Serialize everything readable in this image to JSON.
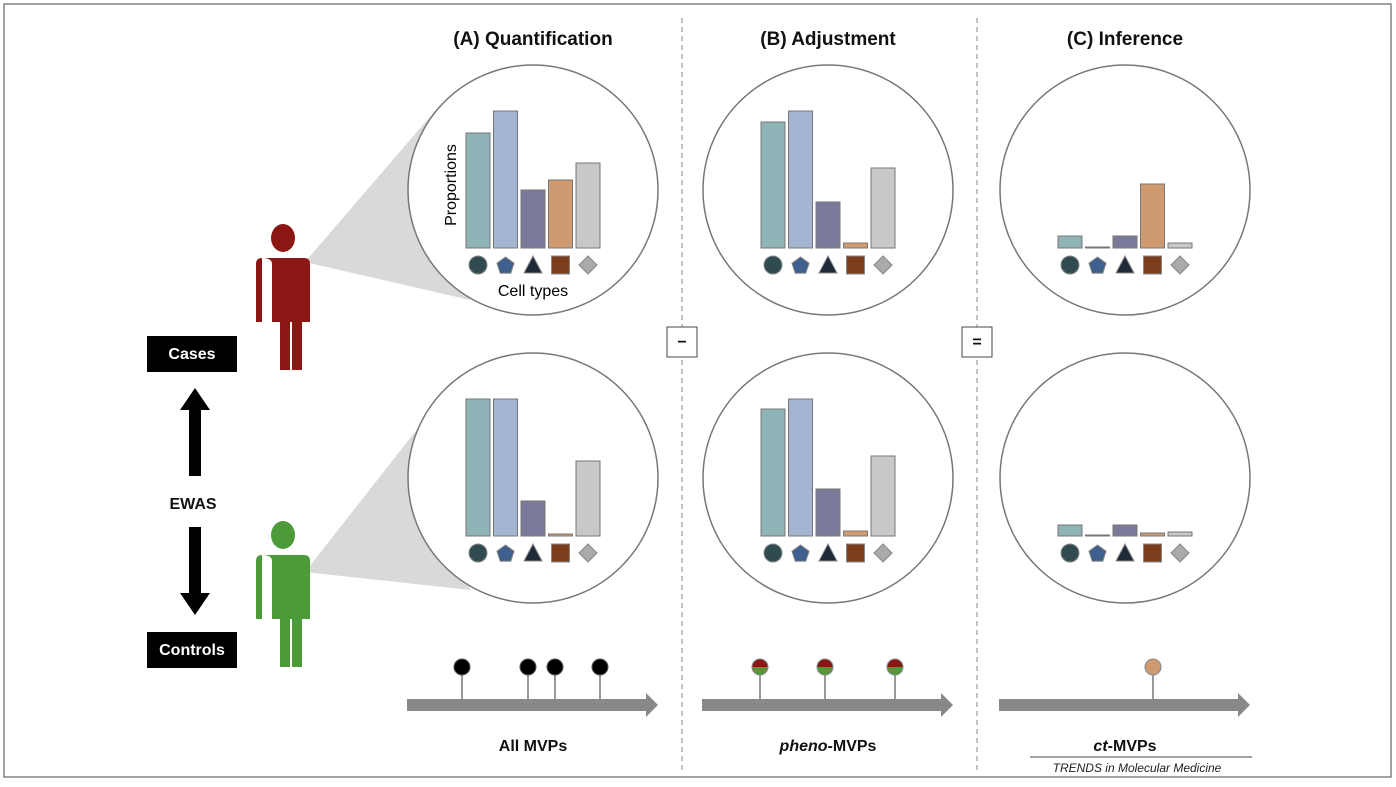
{
  "panels": [
    {
      "title": "(A)  Quantification",
      "axis_y": "Proportions",
      "axis_x": "Cell types",
      "track_label": "All MVPs"
    },
    {
      "title": "(B)  Adjustment",
      "track_label": {
        "italic": "pheno",
        "rest": "-MVPs"
      }
    },
    {
      "title": "(C)  Inference",
      "track_label": {
        "italic": "ct",
        "rest": "-MVPs"
      }
    }
  ],
  "operators": [
    "−",
    "="
  ],
  "groups": {
    "cases": "Cases",
    "center": "EWAS",
    "controls": "Controls"
  },
  "footer": "TRENDS in Molecular Medicine"
}
